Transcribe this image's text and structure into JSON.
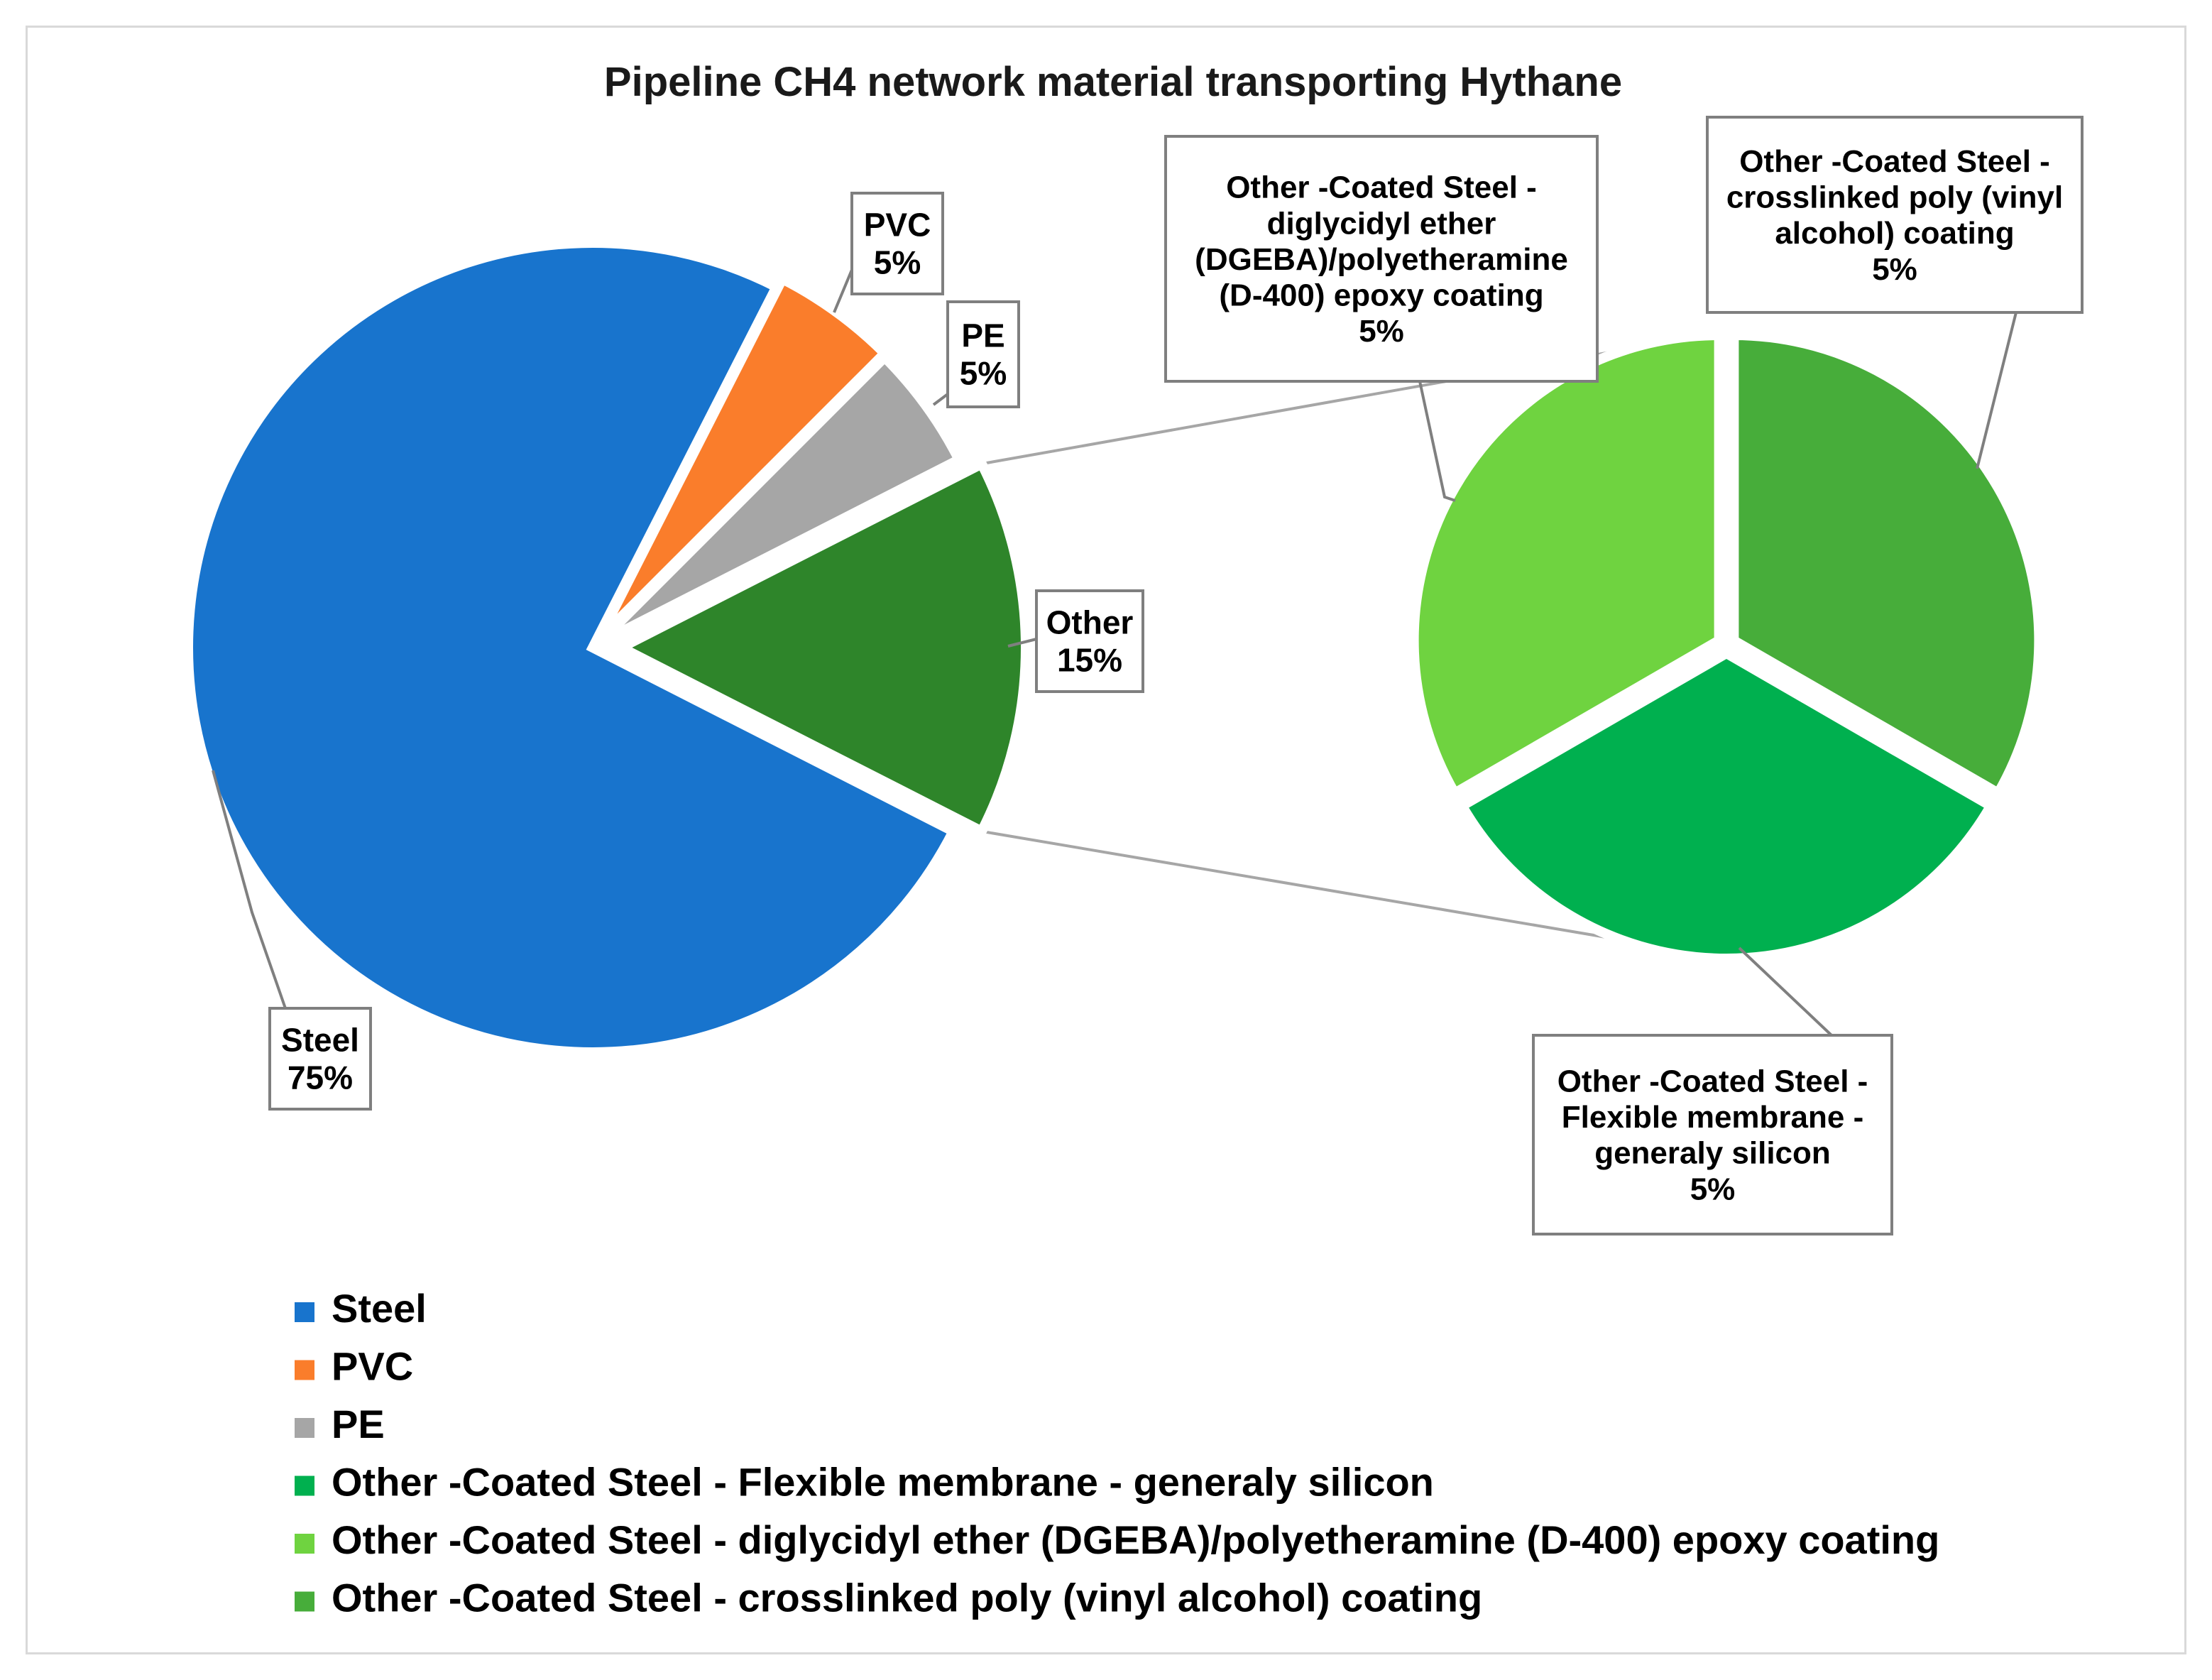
{
  "chart_data": {
    "type": "pie",
    "title": "Pipeline CH4 network material transporting Hythane",
    "main_pie": {
      "slices": [
        {
          "name": "Steel",
          "value": 75,
          "label": "75%",
          "color": "#1874cd"
        },
        {
          "name": "PVC",
          "value": 5,
          "label": "5%",
          "color": "#fa7d2b"
        },
        {
          "name": "PE",
          "value": 5,
          "label": "5%",
          "color": "#a6a6a6"
        },
        {
          "name": "Other",
          "value": 15,
          "label": "15%",
          "color": "#2e852a"
        }
      ]
    },
    "secondary_pie": {
      "of": "Other",
      "slices": [
        {
          "name": "Other -Coated Steel - Flexible membrane - generaly silicon",
          "value": 5,
          "label": "5%",
          "color": "#00b04f"
        },
        {
          "name": "Other -Coated Steel - diglycidyl ether (DGEBA)/polyetheramine (D-400) epoxy coating",
          "value": 5,
          "label": "5%",
          "color": "#6fd340"
        },
        {
          "name": "Other -Coated Steel - crosslinked poly (vinyl alcohol) coating",
          "value": 5,
          "label": "5%",
          "color": "#47ad3a"
        }
      ]
    },
    "data_labels": {
      "steel": [
        "Steel",
        "75%"
      ],
      "pvc": [
        "PVC",
        "5%"
      ],
      "pe": [
        "PE",
        "5%"
      ],
      "other": [
        "Other",
        "15%"
      ],
      "membrane": [
        "Other -Coated Steel -",
        "Flexible membrane -",
        "generaly silicon",
        "5%"
      ],
      "epoxy": [
        "Other -Coated Steel -",
        "diglycidyl ether",
        "(DGEBA)/polyetheramine",
        "(D-400) epoxy coating",
        "5%"
      ],
      "pva": [
        "Other -Coated Steel -",
        "crosslinked poly (vinyl",
        "alcohol) coating",
        "5%"
      ]
    },
    "legend_position": "bottom-left",
    "legend": [
      {
        "label": "Steel",
        "color": "#1874cd"
      },
      {
        "label": "PVC",
        "color": "#fa7d2b"
      },
      {
        "label": "PE",
        "color": "#a6a6a6"
      },
      {
        "label": "Other -Coated Steel - Flexible membrane - generaly silicon",
        "color": "#00b04f"
      },
      {
        "label": "Other -Coated Steel - diglycidyl ether (DGEBA)/polyetheramine (D-400) epoxy coating",
        "color": "#6fd340"
      },
      {
        "label": "Other -Coated Steel - crosslinked poly (vinyl alcohol) coating",
        "color": "#47ad3a"
      }
    ]
  }
}
